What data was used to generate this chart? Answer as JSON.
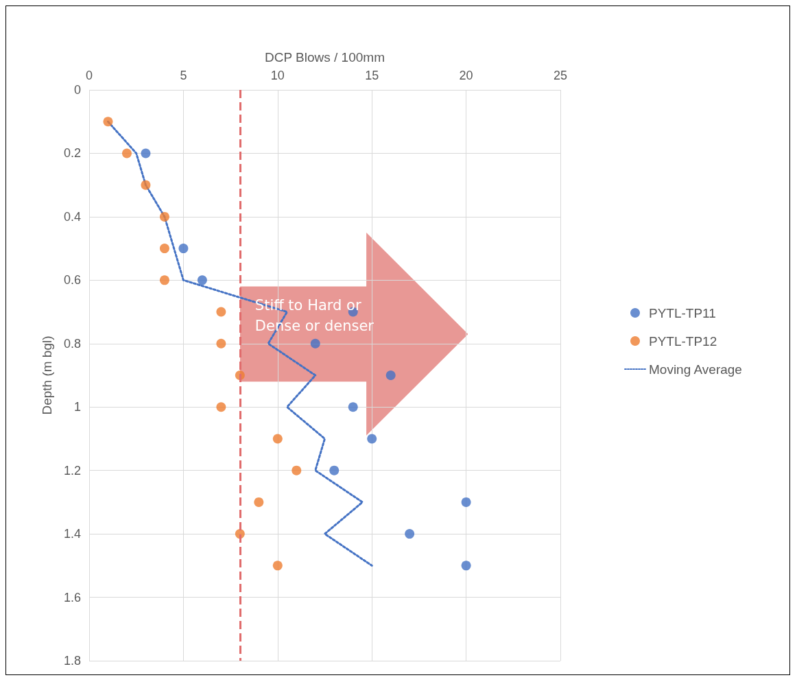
{
  "chart_data": {
    "type": "scatter",
    "xlabel": "DCP Blows / 100mm",
    "ylabel": "Depth (m bgl)",
    "xlim": [
      0,
      25
    ],
    "xticks": [
      0,
      5,
      10,
      15,
      20,
      25
    ],
    "ylim": [
      1.8,
      0
    ],
    "yticks": [
      0,
      0.2,
      0.4,
      0.6,
      0.8,
      1,
      1.2,
      1.4,
      1.6,
      1.8
    ],
    "grid": true,
    "legend": "right",
    "marker": "circle",
    "series": [
      {
        "name": "PYTL-TP11",
        "color": "#4472c4",
        "x": [
          null,
          3,
          null,
          null,
          5,
          6,
          14,
          12,
          16,
          14,
          15,
          13,
          20,
          17,
          20
        ],
        "values": [
          null,
          0.2,
          null,
          null,
          0.5,
          0.6,
          0.7,
          0.8,
          0.9,
          1.0,
          1.1,
          1.2,
          1.3,
          1.4,
          1.5
        ]
      },
      {
        "name": "PYTL-TP12",
        "color": "#ed7d31",
        "x": [
          1,
          2,
          3,
          4,
          4,
          4,
          7,
          7,
          8,
          7,
          10,
          11,
          9,
          8,
          10
        ],
        "values": [
          0.1,
          0.2,
          0.3,
          0.4,
          0.5,
          0.6,
          0.7,
          0.8,
          0.9,
          1.0,
          1.1,
          1.2,
          1.3,
          1.4,
          1.5
        ]
      },
      {
        "name": "Moving Average",
        "type": "line",
        "line_style": "dotted",
        "marker": "none",
        "color": "#4472c4",
        "x": [
          1,
          2.5,
          3,
          4,
          4.5,
          5,
          10.5,
          9.5,
          12,
          10.5,
          12.5,
          12,
          14.5,
          12.5,
          15
        ],
        "values": [
          0.1,
          0.2,
          0.3,
          0.4,
          0.5,
          0.6,
          0.7,
          0.8,
          0.9,
          1.0,
          1.1,
          1.2,
          1.3,
          1.4,
          1.5
        ]
      }
    ],
    "ref_lines": [
      {
        "axis": "x",
        "value": 8,
        "color": "#e06c6c",
        "line_style": "dashed"
      }
    ],
    "annotations": [
      "Stiff to Hard or Dense or denser"
    ]
  }
}
